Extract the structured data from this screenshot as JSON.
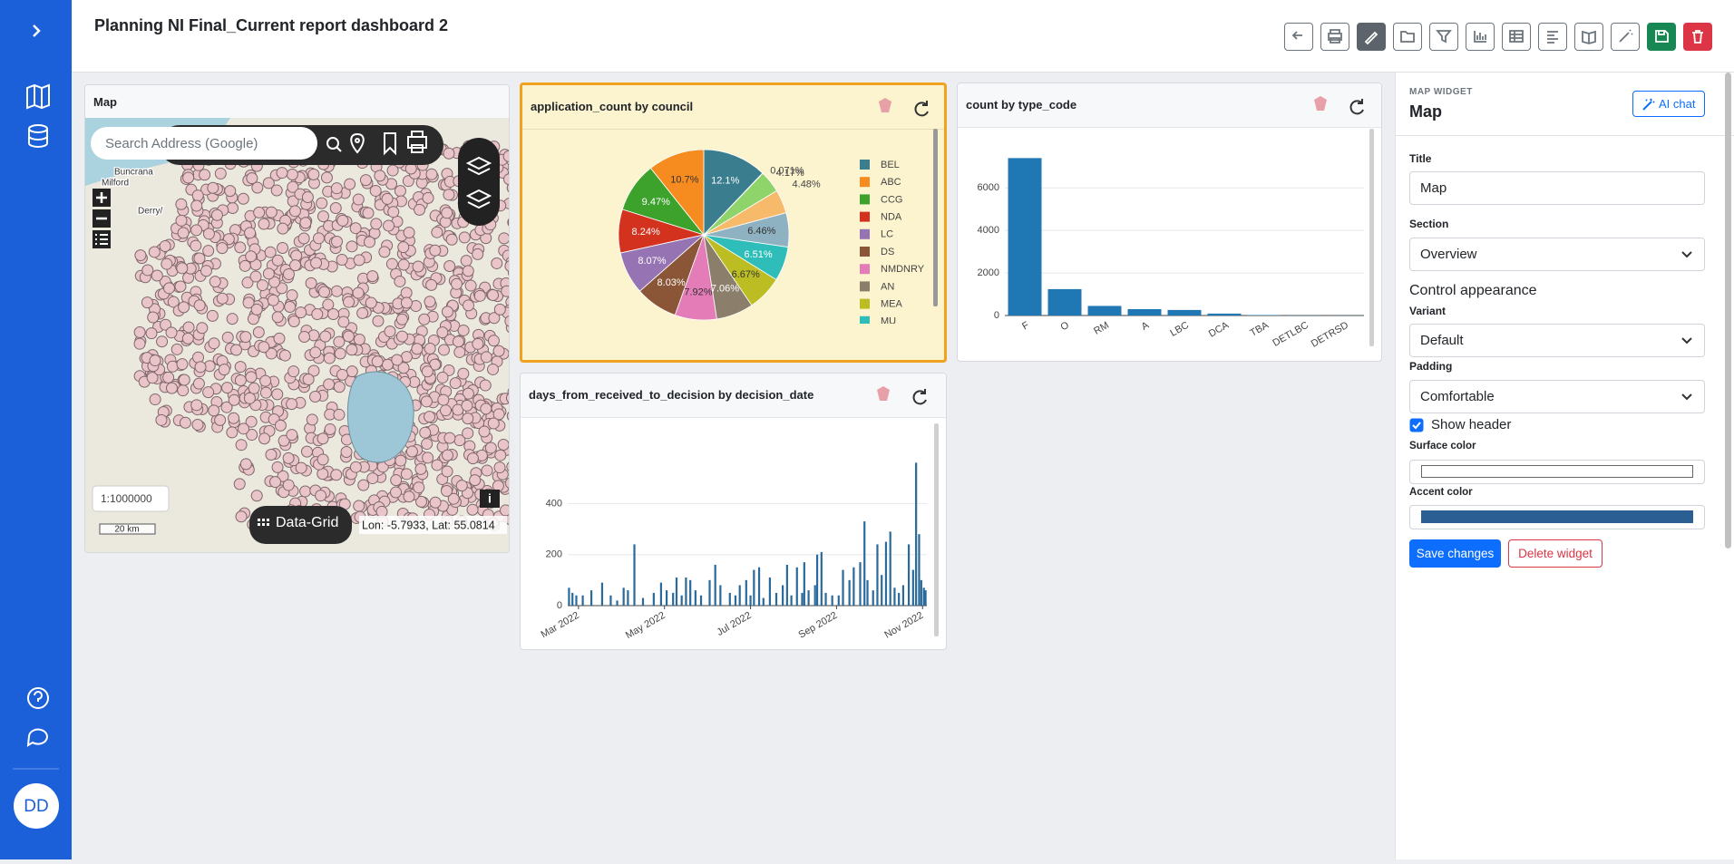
{
  "header": {
    "title": "Planning NI Final_Current report dashboard 2"
  },
  "sidebar": {
    "avatar": "DD"
  },
  "map_widget": {
    "title": "Map",
    "search_placeholder": "Search Address (Google)",
    "places": [
      "Buncrana",
      "Milford",
      "Derry/"
    ],
    "scale": "1:1000000",
    "scale_bar": "20 km",
    "data_grid": "Data-Grid",
    "coordinates": "Lon: -5.7933, Lat: 55.0814",
    "info": "i"
  },
  "chart_data": [
    {
      "type": "pie",
      "title": "application_count by council",
      "categories": [
        "BEL",
        "ABC",
        "CCG",
        "NDA",
        "LC",
        "DS",
        "NMDNRY",
        "AN",
        "MEA",
        "MU",
        null,
        null,
        null,
        null
      ],
      "values": [
        12.1,
        10.7,
        9.47,
        8.24,
        8.07,
        8.03,
        7.92,
        7.06,
        6.67,
        6.51,
        6.46,
        4.48,
        4.17,
        0.071
      ],
      "value_labels": [
        "12.1%",
        "10.7%",
        "9.47%",
        "8.24%",
        "8.07%",
        "8.03%",
        "7.92%",
        "7.06%",
        "6.67%",
        "6.51%",
        "6.46%",
        "4.48%",
        "4.17%",
        "0.071%"
      ],
      "colors": [
        "#3a7d8e",
        "#f68b1f",
        "#3ca22c",
        "#d3321f",
        "#9674b3",
        "#8b5637",
        "#e47cb8",
        "#8b7f6b",
        "#bcbd22",
        "#2fbdb9",
        "#8fb2c2",
        "#f7ba6b",
        "#8fd36b",
        "#e6a2a2"
      ]
    },
    {
      "type": "bar",
      "title": "count by type_code",
      "categories": [
        "F",
        "O",
        "RM",
        "A",
        "LBC",
        "DCA",
        "TBA",
        "DETLBC",
        "DETRSD"
      ],
      "values": [
        7400,
        1240,
        450,
        300,
        260,
        90,
        20,
        10,
        5
      ],
      "color": "#1f77b4",
      "ylim": [
        0,
        7800
      ],
      "yticks": [
        0,
        2000,
        4000,
        6000
      ],
      "grid": true
    },
    {
      "type": "bar",
      "title": "days_from_received_to_decision by decision_date",
      "x": [
        2.78,
        2.86,
        2.95,
        3.1,
        3.3,
        3.55,
        3.75,
        3.9,
        4.05,
        4.15,
        4.3,
        4.5,
        4.75,
        4.92,
        5.05,
        5.2,
        5.28,
        5.4,
        5.5,
        5.6,
        5.72,
        5.85,
        6.05,
        6.18,
        6.3,
        6.52,
        6.65,
        6.75,
        6.9,
        7.0,
        7.08,
        7.2,
        7.3,
        7.45,
        7.6,
        7.75,
        7.85,
        7.95,
        8.08,
        8.2,
        8.25,
        8.35,
        8.5,
        8.55,
        8.65,
        8.75,
        8.9,
        9.05,
        9.15,
        9.3,
        9.4,
        9.55,
        9.65,
        9.72,
        9.85,
        9.95,
        10.05,
        10.15,
        10.25,
        10.35,
        10.45,
        10.55,
        10.68,
        10.78,
        10.85,
        10.92,
        10.97,
        11.03,
        11.07
      ],
      "values": [
        70,
        50,
        40,
        40,
        60,
        90,
        40,
        20,
        70,
        60,
        240,
        30,
        50,
        90,
        60,
        50,
        110,
        40,
        110,
        100,
        60,
        40,
        100,
        160,
        80,
        50,
        40,
        80,
        100,
        40,
        140,
        150,
        30,
        110,
        50,
        80,
        160,
        40,
        150,
        50,
        170,
        60,
        80,
        200,
        210,
        50,
        40,
        40,
        140,
        100,
        150,
        170,
        330,
        100,
        60,
        240,
        120,
        250,
        290,
        70,
        50,
        80,
        240,
        140,
        560,
        280,
        100,
        70,
        60
      ],
      "color": "#2a6a9a",
      "xlim": [
        2.75,
        11.1
      ],
      "xticks": [
        {
          "value": 3,
          "label": "Mar 2022"
        },
        {
          "value": 5,
          "label": "May 2022"
        },
        {
          "value": 7,
          "label": "Jul 2022"
        },
        {
          "value": 9,
          "label": "Sep 2022"
        },
        {
          "value": 11,
          "label": "Nov 2022"
        }
      ],
      "ylim": [
        0,
        650
      ],
      "yticks": [
        0,
        200,
        400
      ],
      "grid": true
    }
  ],
  "panel": {
    "kicker": "MAP WIDGET",
    "heading": "Map",
    "ai_chat": "AI chat",
    "title_label": "Title",
    "title_value": "Map",
    "section_label": "Section",
    "section_value": "Overview",
    "appearance": "Control appearance",
    "variant_label": "Variant",
    "variant_value": "Default",
    "padding_label": "Padding",
    "padding_value": "Comfortable",
    "show_header": "Show header",
    "surface_label": "Surface color",
    "surface_color": "#ffffff",
    "accent_label": "Accent color",
    "accent_color": "#2b5f93",
    "save": "Save changes",
    "delete": "Delete widget"
  }
}
